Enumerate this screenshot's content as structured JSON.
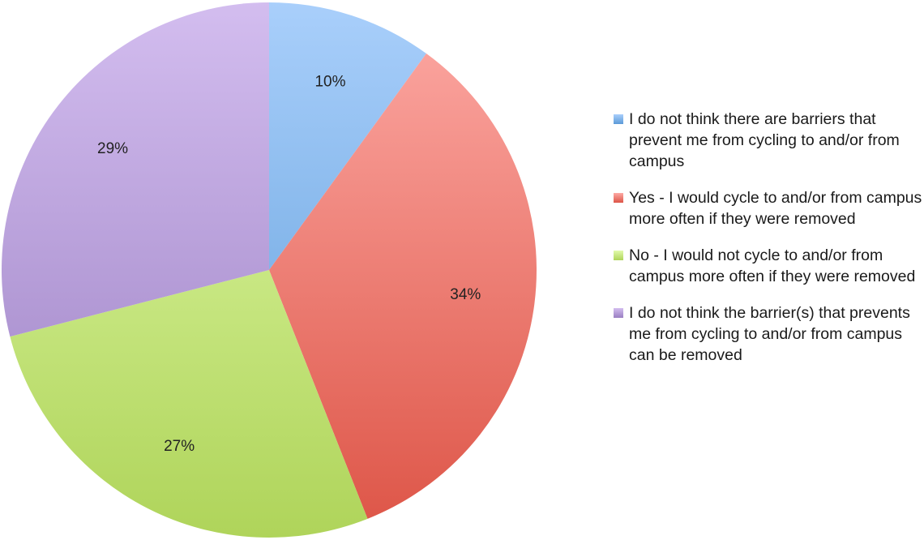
{
  "chart_data": {
    "type": "pie",
    "title": "",
    "start_angle_deg": 0,
    "direction": "clockwise",
    "slices": [
      {
        "label": "I do not think there are barriers that prevent me from cycling to and/or from campus",
        "value": 10,
        "display": "10%",
        "color_light": "#a9cffb",
        "color_dark": "#5b9ad7"
      },
      {
        "label": "Yes - I would cycle to and/or from campus more often if they were removed",
        "value": 34,
        "display": "34%",
        "color_light": "#fdaaa5",
        "color_dark": "#dd5446"
      },
      {
        "label": "No - I would not cycle to and/or from campus more often if they were removed",
        "value": 27,
        "display": "27%",
        "color_light": "#e2fbac",
        "color_dark": "#afd45a"
      },
      {
        "label": "I do not think the barrier(s) that prevents me from cycling to and/or from campus can be removed",
        "value": 29,
        "display": "29%",
        "color_light": "#d3bdef",
        "color_dark": "#9a7fc2"
      }
    ],
    "legend_position": "right"
  }
}
